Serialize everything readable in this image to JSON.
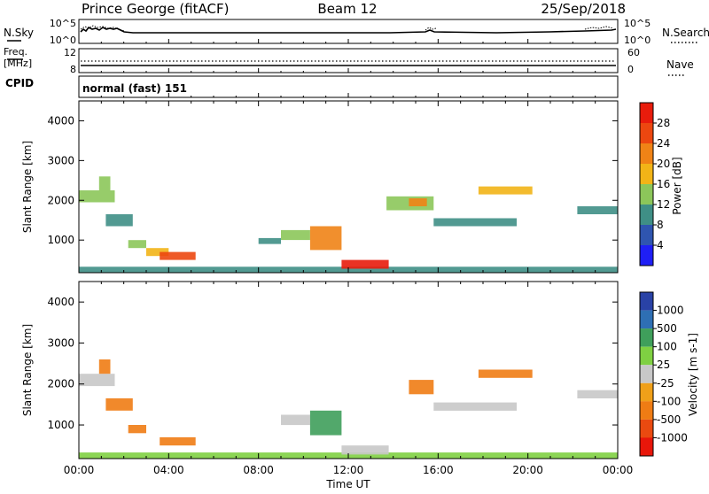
{
  "header": {
    "station": "Prince George (fitACF)",
    "beam": "Beam 12",
    "date": "25/Sep/2018"
  },
  "strips": {
    "nsky_label": "N.Sky",
    "nsky_ticks": [
      "10^5",
      "10^0"
    ],
    "nsearch_label": "N.Search",
    "nsearch_ticks": [
      "10^5",
      "10^0"
    ],
    "freq_label": "Freq.",
    "freq_unit": "[MHz]",
    "freq_ticks": [
      "12",
      "8"
    ],
    "nave_label": "Nave",
    "nave_ticks": [
      "60",
      "0"
    ],
    "cpid_label": "CPID",
    "cpid_value": "normal (fast) 151"
  },
  "axes": {
    "x_label": "Time UT",
    "y_label": "Slant Range [km]",
    "x_ticks": [
      "00:00",
      "04:00",
      "08:00",
      "12:00",
      "16:00",
      "20:00",
      "00:00"
    ],
    "y_ticks": [
      "1000",
      "2000",
      "3000",
      "4000"
    ]
  },
  "colorbars": {
    "power_label": "Power [dB]",
    "power_ticks": [
      "4",
      "8",
      "12",
      "16",
      "20",
      "24",
      "28"
    ],
    "power_colors": [
      "#1f1ff5",
      "#2f55b0",
      "#3f8f86",
      "#8cc65a",
      "#f2b417",
      "#f08316",
      "#ec4710",
      "#e81c0c"
    ],
    "velocity_label": "Velocity [m s-1]",
    "velocity_ticks": [
      "1000",
      "500",
      "100",
      "25",
      "-25",
      "-100",
      "-500",
      "-1000"
    ],
    "velocity_colors": [
      "#2942a6",
      "#2e6fb4",
      "#3f9f5b",
      "#7fd042",
      "#c8c8c8",
      "#f0a019",
      "#ef7c14",
      "#ea4a10",
      "#e8160a"
    ]
  },
  "chart_data": [
    {
      "type": "heatmap",
      "title": "Power",
      "xlabel": "Time UT",
      "ylabel": "Slant Range [km]",
      "xlim": [
        0,
        24
      ],
      "ylim": [
        180,
        4500
      ],
      "colorbar_label": "Power [dB]",
      "colorbar_range": [
        0,
        30
      ],
      "regions": [
        {
          "t0": 0.0,
          "t1": 24.0,
          "r0": 190,
          "r1": 330,
          "value": 9
        },
        {
          "t0": 0.0,
          "t1": 1.6,
          "r0": 1950,
          "r1": 2250,
          "value": 12
        },
        {
          "t0": 0.9,
          "t1": 1.4,
          "r0": 2250,
          "r1": 2600,
          "value": 14
        },
        {
          "t0": 1.2,
          "t1": 2.4,
          "r0": 1350,
          "r1": 1650,
          "value": 10
        },
        {
          "t0": 2.2,
          "t1": 3.0,
          "r0": 800,
          "r1": 1000,
          "value": 13
        },
        {
          "t0": 3.0,
          "t1": 4.0,
          "r0": 600,
          "r1": 800,
          "value": 16
        },
        {
          "t0": 3.6,
          "t1": 5.2,
          "r0": 500,
          "r1": 700,
          "value": 24
        },
        {
          "t0": 8.0,
          "t1": 9.0,
          "r0": 900,
          "r1": 1050,
          "value": 10
        },
        {
          "t0": 9.0,
          "t1": 10.3,
          "r0": 1000,
          "r1": 1250,
          "value": 13
        },
        {
          "t0": 10.3,
          "t1": 11.7,
          "r0": 750,
          "r1": 1350,
          "value": 22
        },
        {
          "t0": 11.7,
          "t1": 13.8,
          "r0": 280,
          "r1": 500,
          "value": 29
        },
        {
          "t0": 13.7,
          "t1": 15.8,
          "r0": 1750,
          "r1": 2100,
          "value": 12
        },
        {
          "t0": 14.7,
          "t1": 15.5,
          "r0": 1850,
          "r1": 2050,
          "value": 19
        },
        {
          "t0": 15.8,
          "t1": 19.5,
          "r0": 1350,
          "r1": 1550,
          "value": 9
        },
        {
          "t0": 17.8,
          "t1": 20.2,
          "r0": 2150,
          "r1": 2350,
          "value": 16
        },
        {
          "t0": 22.2,
          "t1": 24.0,
          "r0": 1650,
          "r1": 1850,
          "value": 10
        }
      ]
    },
    {
      "type": "heatmap",
      "title": "Velocity",
      "xlabel": "Time UT",
      "ylabel": "Slant Range [km]",
      "xlim": [
        0,
        24
      ],
      "ylim": [
        180,
        4500
      ],
      "colorbar_label": "Velocity [m s-1]",
      "colorbar_range": [
        -1000,
        1000
      ],
      "regions": [
        {
          "t0": 0.0,
          "t1": 24.0,
          "r0": 190,
          "r1": 330,
          "value": 60
        },
        {
          "t0": 0.0,
          "t1": 1.6,
          "r0": 1950,
          "r1": 2250,
          "value": 0
        },
        {
          "t0": 0.9,
          "t1": 1.4,
          "r0": 2250,
          "r1": 2600,
          "value": -300
        },
        {
          "t0": 1.2,
          "t1": 2.4,
          "r0": 1350,
          "r1": 1650,
          "value": -300
        },
        {
          "t0": 2.2,
          "t1": 3.0,
          "r0": 800,
          "r1": 1000,
          "value": -150
        },
        {
          "t0": 3.6,
          "t1": 5.2,
          "r0": 500,
          "r1": 700,
          "value": -300
        },
        {
          "t0": 9.0,
          "t1": 10.3,
          "r0": 1000,
          "r1": 1250,
          "value": 0
        },
        {
          "t0": 10.3,
          "t1": 11.7,
          "r0": 750,
          "r1": 1350,
          "value": 300
        },
        {
          "t0": 11.7,
          "t1": 13.8,
          "r0": 280,
          "r1": 500,
          "value": 0
        },
        {
          "t0": 14.7,
          "t1": 15.8,
          "r0": 1750,
          "r1": 2100,
          "value": -300
        },
        {
          "t0": 15.8,
          "t1": 19.5,
          "r0": 1350,
          "r1": 1550,
          "value": 0
        },
        {
          "t0": 17.8,
          "t1": 20.2,
          "r0": 2150,
          "r1": 2350,
          "value": -300
        },
        {
          "t0": 22.2,
          "t1": 24.0,
          "r0": 1650,
          "r1": 1850,
          "value": 0
        }
      ]
    }
  ]
}
